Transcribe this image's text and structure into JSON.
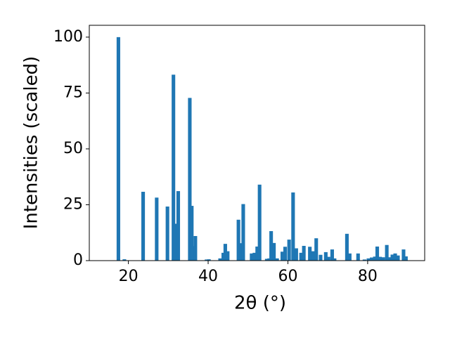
{
  "chart_data": {
    "type": "bar",
    "x_label": "2θ (°)",
    "y_label": "Intensities (scaled)",
    "color": "#1f77b4",
    "xlim": [
      10.2,
      94.3
    ],
    "ylim": [
      0,
      105.3
    ],
    "xticks": [
      20,
      40,
      60,
      80
    ],
    "yticks": [
      0,
      25,
      50,
      75,
      100
    ],
    "x": [
      17.5,
      19.0,
      23.7,
      27.1,
      29.8,
      31.3,
      31.9,
      32.5,
      35.4,
      35.9,
      36.2,
      36.8,
      39.6,
      40.2,
      43.0,
      43.8,
      44.3,
      44.9,
      47.6,
      48.3,
      48.8,
      50.9,
      51.6,
      52.3,
      52.9,
      54.7,
      55.3,
      55.8,
      56.5,
      57.3,
      58.6,
      59.3,
      60.3,
      61.3,
      62.1,
      63.3,
      64.0,
      65.5,
      66.3,
      67.1,
      68.2,
      69.5,
      70.2,
      71.1,
      71.7,
      74.8,
      75.5,
      77.6,
      79.2,
      80.2,
      81.0,
      81.8,
      82.4,
      83.1,
      83.9,
      84.8,
      85.4,
      86.2,
      86.9,
      87.6,
      89.0,
      89.6
    ],
    "values": [
      100,
      0.6,
      30.8,
      28.2,
      24.2,
      83.2,
      16.5,
      31.1,
      72.8,
      24.5,
      6.5,
      11,
      0.5,
      0.6,
      1,
      3.5,
      7.5,
      4.2,
      18.3,
      7.8,
      25.3,
      3.2,
      3.5,
      6.3,
      34,
      0.8,
      1,
      13.2,
      7.9,
      1,
      4,
      6.2,
      9.4,
      30.5,
      5.5,
      3.5,
      6.6,
      6.2,
      4.2,
      10,
      2.6,
      3.8,
      1.7,
      5,
      1,
      12,
      3.2,
      3.2,
      0.5,
      1,
      1.4,
      1.8,
      6.3,
      1.7,
      1.5,
      7,
      1.5,
      2.7,
      3.2,
      2.3,
      5,
      1.9
    ]
  }
}
